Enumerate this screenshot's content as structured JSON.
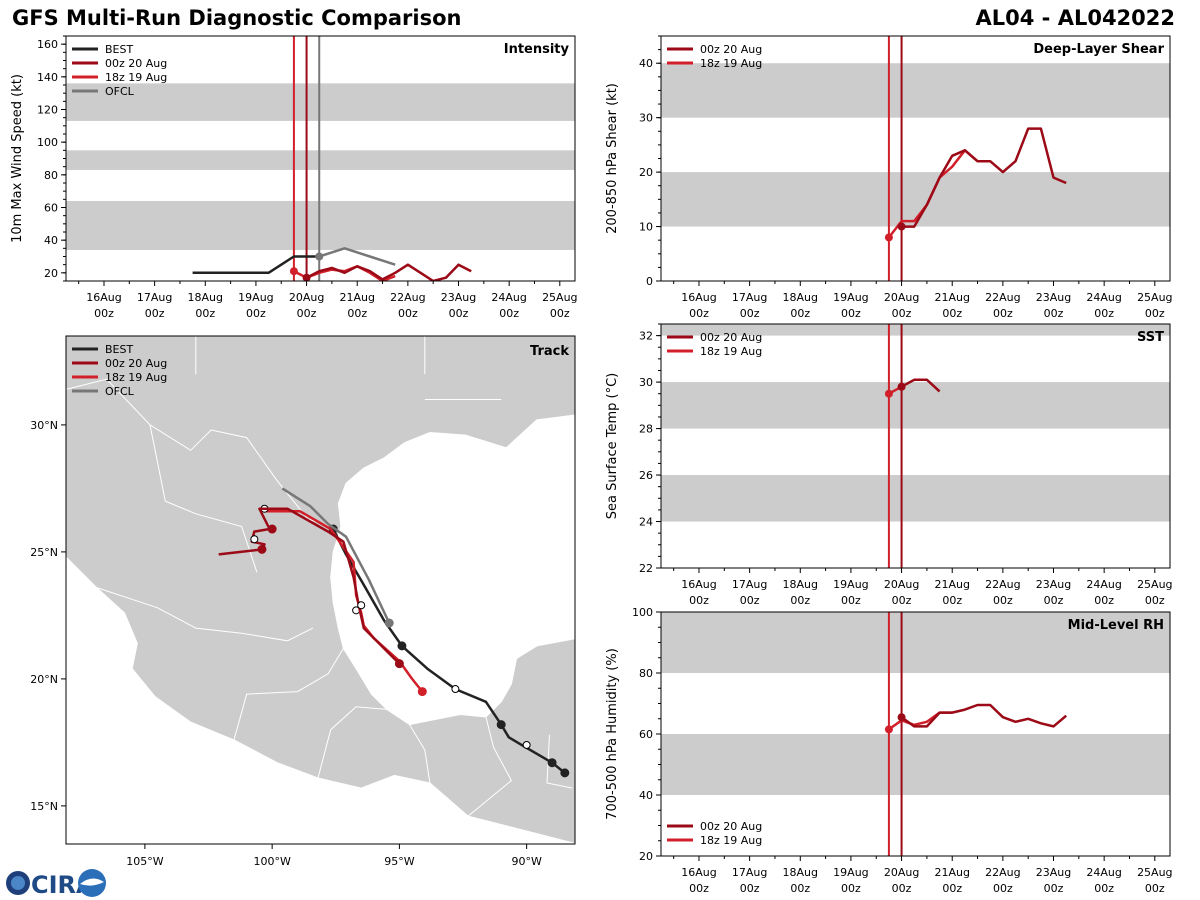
{
  "header": {
    "title_left": "GFS Multi-Run Diagnostic Comparison",
    "title_right": "AL04 - AL042022"
  },
  "logo": {
    "text": "CIRA"
  },
  "colors": {
    "best": "#222222",
    "run_00z": "#9b0a16",
    "run_18z": "#d2202a",
    "ofcl": "#777777",
    "band": "#cccccc",
    "land": "#cccccc"
  },
  "time_axis": {
    "ticks": [
      {
        "day": 16,
        "top": "16Aug",
        "bottom": "00z"
      },
      {
        "day": 17,
        "top": "17Aug",
        "bottom": "00z"
      },
      {
        "day": 18,
        "top": "18Aug",
        "bottom": "00z"
      },
      {
        "day": 19,
        "top": "19Aug",
        "bottom": "00z"
      },
      {
        "day": 20,
        "top": "20Aug",
        "bottom": "00z"
      },
      {
        "day": 21,
        "top": "21Aug",
        "bottom": "00z"
      },
      {
        "day": 22,
        "top": "22Aug",
        "bottom": "00z"
      },
      {
        "day": 23,
        "top": "23Aug",
        "bottom": "00z"
      },
      {
        "day": 24,
        "top": "24Aug",
        "bottom": "00z"
      },
      {
        "day": 25,
        "top": "25Aug",
        "bottom": "00z"
      }
    ]
  },
  "chart_data": [
    {
      "id": "intensity",
      "type": "line",
      "title": "Intensity",
      "ylabel": "10m Max Wind Speed (kt)",
      "xlim": [
        15.25,
        25.3
      ],
      "ylim": [
        15,
        165
      ],
      "yticks": [
        20,
        40,
        60,
        80,
        100,
        120,
        140,
        160
      ],
      "bands": [
        [
          34,
          64
        ],
        [
          83,
          95
        ],
        [
          113,
          136
        ]
      ],
      "vlines": [
        {
          "x": 19.75,
          "series": "18z 19 Aug"
        },
        {
          "x": 20.0,
          "series": "00z 20 Aug"
        },
        {
          "x": 20.25,
          "series": "OFCL"
        }
      ],
      "legend": {
        "position": "top-left",
        "entries": [
          "BEST",
          "00z 20 Aug",
          "18z 19 Aug",
          "OFCL"
        ]
      },
      "series": [
        {
          "name": "BEST",
          "color_key": "best",
          "points": [
            [
              17.75,
              20
            ],
            [
              18.0,
              20
            ],
            [
              18.25,
              20
            ],
            [
              18.5,
              20
            ],
            [
              18.75,
              20
            ],
            [
              19.0,
              20
            ],
            [
              19.25,
              20
            ],
            [
              19.5,
              25
            ],
            [
              19.75,
              30
            ],
            [
              20.0,
              30
            ],
            [
              20.25,
              30
            ]
          ]
        },
        {
          "name": "OFCL",
          "color_key": "ofcl",
          "marker_start": true,
          "points": [
            [
              20.25,
              30
            ],
            [
              20.75,
              35
            ],
            [
              21.25,
              30
            ],
            [
              21.75,
              25
            ]
          ]
        },
        {
          "name": "18z 19 Aug",
          "color_key": "run_18z",
          "marker_start": true,
          "points": [
            [
              19.75,
              21
            ],
            [
              20.0,
              17
            ],
            [
              20.25,
              20
            ],
            [
              20.5,
              22
            ],
            [
              20.75,
              21
            ],
            [
              21.0,
              24
            ],
            [
              21.25,
              20
            ],
            [
              21.5,
              15
            ],
            [
              21.75,
              18
            ]
          ]
        },
        {
          "name": "00z 20 Aug",
          "color_key": "run_00z",
          "marker_start": true,
          "points": [
            [
              20.0,
              17
            ],
            [
              20.25,
              21
            ],
            [
              20.5,
              23
            ],
            [
              20.75,
              20
            ],
            [
              21.0,
              24
            ],
            [
              21.25,
              21
            ],
            [
              21.5,
              16
            ],
            [
              21.75,
              20
            ],
            [
              22.0,
              25
            ],
            [
              22.25,
              20
            ],
            [
              22.5,
              15
            ],
            [
              22.75,
              17
            ],
            [
              23.0,
              25
            ],
            [
              23.25,
              21
            ]
          ]
        }
      ]
    },
    {
      "id": "shear",
      "type": "line",
      "title": "Deep-Layer Shear",
      "ylabel": "200-850 hPa Shear (kt)",
      "xlim": [
        15.25,
        25.3
      ],
      "ylim": [
        0,
        45
      ],
      "yticks": [
        0,
        10,
        20,
        30,
        40
      ],
      "bands": [
        [
          10,
          20
        ],
        [
          30,
          40
        ]
      ],
      "vlines": [
        {
          "x": 19.75,
          "series": "18z 19 Aug"
        },
        {
          "x": 20.0,
          "series": "00z 20 Aug"
        }
      ],
      "legend": {
        "position": "top-left",
        "entries": [
          "00z 20 Aug",
          "18z 19 Aug"
        ]
      },
      "series": [
        {
          "name": "18z 19 Aug",
          "color_key": "run_18z",
          "marker_start": true,
          "points": [
            [
              19.75,
              8
            ],
            [
              20.0,
              11
            ],
            [
              20.25,
              11
            ],
            [
              20.5,
              14
            ],
            [
              20.75,
              19
            ],
            [
              21.0,
              21
            ],
            [
              21.25,
              24
            ],
            [
              21.5,
              22
            ]
          ]
        },
        {
          "name": "00z 20 Aug",
          "color_key": "run_00z",
          "marker_start": true,
          "points": [
            [
              20.0,
              10
            ],
            [
              20.25,
              10
            ],
            [
              20.5,
              14
            ],
            [
              20.75,
              19
            ],
            [
              21.0,
              23
            ],
            [
              21.25,
              24
            ],
            [
              21.5,
              22
            ],
            [
              21.75,
              22
            ],
            [
              22.0,
              20
            ],
            [
              22.25,
              22
            ],
            [
              22.5,
              28
            ],
            [
              22.75,
              28
            ],
            [
              23.0,
              19
            ],
            [
              23.25,
              18
            ]
          ]
        }
      ]
    },
    {
      "id": "sst",
      "type": "line",
      "title": "SST",
      "ylabel": "Sea Surface Temp (°C)",
      "xlim": [
        15.25,
        25.3
      ],
      "ylim": [
        22,
        32.5
      ],
      "yticks": [
        22,
        24,
        26,
        28,
        30,
        32
      ],
      "bands": [
        [
          24,
          26
        ],
        [
          28,
          30
        ],
        [
          32,
          34
        ]
      ],
      "vlines": [
        {
          "x": 19.75,
          "series": "18z 19 Aug"
        },
        {
          "x": 20.0,
          "series": "00z 20 Aug"
        }
      ],
      "legend": {
        "position": "top-left",
        "entries": [
          "00z 20 Aug",
          "18z 19 Aug"
        ]
      },
      "series": [
        {
          "name": "18z 19 Aug",
          "color_key": "run_18z",
          "marker_start": true,
          "points": [
            [
              19.75,
              29.5
            ],
            [
              20.0,
              29.8
            ]
          ]
        },
        {
          "name": "00z 20 Aug",
          "color_key": "run_00z",
          "marker_start": true,
          "points": [
            [
              20.0,
              29.8
            ],
            [
              20.25,
              30.1
            ],
            [
              20.5,
              30.1
            ],
            [
              20.75,
              29.6
            ]
          ]
        }
      ]
    },
    {
      "id": "rh",
      "type": "line",
      "title": "Mid-Level RH",
      "ylabel": "700-500 hPa Humidity (%)",
      "xlim": [
        15.25,
        25.3
      ],
      "ylim": [
        20,
        100
      ],
      "yticks": [
        20,
        40,
        60,
        80,
        100
      ],
      "bands": [
        [
          40,
          60
        ],
        [
          80,
          100
        ]
      ],
      "vlines": [
        {
          "x": 19.75,
          "series": "18z 19 Aug"
        },
        {
          "x": 20.0,
          "series": "00z 20 Aug"
        }
      ],
      "legend": {
        "position": "bottom-left",
        "entries": [
          "00z 20 Aug",
          "18z 19 Aug"
        ]
      },
      "series": [
        {
          "name": "18z 19 Aug",
          "color_key": "run_18z",
          "marker_start": true,
          "points": [
            [
              19.75,
              61.5
            ],
            [
              20.0,
              64.5
            ],
            [
              20.25,
              63
            ],
            [
              20.5,
              64
            ],
            [
              20.75,
              67
            ],
            [
              21.0,
              67
            ]
          ]
        },
        {
          "name": "00z 20 Aug",
          "color_key": "run_00z",
          "marker_start": true,
          "points": [
            [
              20.0,
              65.5
            ],
            [
              20.25,
              62.5
            ],
            [
              20.5,
              62.5
            ],
            [
              20.75,
              67
            ],
            [
              21.0,
              67
            ],
            [
              21.25,
              68
            ],
            [
              21.5,
              69.5
            ],
            [
              21.75,
              69.5
            ],
            [
              22.0,
              65.5
            ],
            [
              22.25,
              64
            ],
            [
              22.5,
              65
            ],
            [
              22.75,
              63.5
            ],
            [
              23.0,
              62.5
            ],
            [
              23.25,
              66
            ]
          ]
        }
      ]
    },
    {
      "id": "track",
      "type": "scatter",
      "title": "Track",
      "xlim": [
        -108.1,
        -88.1
      ],
      "ylim": [
        13.5,
        33.5
      ],
      "xticks": [
        {
          "lon": -105,
          "label": "105°W"
        },
        {
          "lon": -100,
          "label": "100°W"
        },
        {
          "lon": -95,
          "label": "95°W"
        },
        {
          "lon": -90,
          "label": "90°W"
        }
      ],
      "yticks": [
        {
          "lat": 15,
          "label": "15°N"
        },
        {
          "lat": 20,
          "label": "20°N"
        },
        {
          "lat": 25,
          "label": "25°N"
        },
        {
          "lat": 30,
          "label": "30°N"
        }
      ],
      "legend": {
        "position": "top-left",
        "entries": [
          "BEST",
          "00z 20 Aug",
          "18z 19 Aug",
          "OFCL"
        ]
      },
      "series": [
        {
          "name": "BEST",
          "color_key": "best",
          "points": [
            [
              -88.5,
              16.3
            ],
            [
              -89.0,
              16.7
            ],
            [
              -90.2,
              17.4
            ],
            [
              -90.7,
              17.7
            ],
            [
              -91.0,
              18.2
            ],
            [
              -91.6,
              19.1
            ],
            [
              -92.8,
              19.6
            ],
            [
              -93.9,
              20.4
            ],
            [
              -94.9,
              21.3
            ],
            [
              -95.6,
              22.3
            ],
            [
              -96.4,
              23.7
            ],
            [
              -97.1,
              24.9
            ],
            [
              -97.6,
              25.9
            ]
          ],
          "markers": [
            [
              -88.5,
              16.3,
              "filled"
            ],
            [
              -89.0,
              16.7,
              "filled"
            ],
            [
              -90.0,
              17.4,
              "open"
            ],
            [
              -91.0,
              18.2,
              "filled"
            ],
            [
              -92.8,
              19.6,
              "open"
            ],
            [
              -94.9,
              21.3,
              "filled"
            ],
            [
              -97.6,
              25.9,
              "filled"
            ]
          ]
        },
        {
          "name": "OFCL",
          "color_key": "ofcl",
          "points": [
            [
              -95.4,
              22.2
            ],
            [
              -96.2,
              23.9
            ],
            [
              -97.1,
              25.6
            ],
            [
              -97.8,
              26.1
            ],
            [
              -98.5,
              26.8
            ],
            [
              -99.6,
              27.5
            ]
          ],
          "markers": [
            [
              -95.4,
              22.2,
              "filled"
            ]
          ]
        },
        {
          "name": "18z 19 Aug",
          "color_key": "run_18z",
          "points": [
            [
              -94.1,
              19.5
            ],
            [
              -94.5,
              20.0
            ],
            [
              -95.0,
              20.7
            ],
            [
              -96.0,
              21.6
            ],
            [
              -96.4,
              22.1
            ],
            [
              -96.5,
              22.6
            ],
            [
              -96.7,
              23.3
            ],
            [
              -96.8,
              24.6
            ],
            [
              -97.7,
              25.9
            ],
            [
              -98.9,
              26.6
            ],
            [
              -100.3,
              26.6
            ]
          ],
          "markers": [
            [
              -94.1,
              19.5,
              "filled"
            ],
            [
              -96.7,
              22.7,
              "open"
            ],
            [
              -100.3,
              26.7,
              "open"
            ]
          ]
        },
        {
          "name": "00z 20 Aug",
          "color_key": "run_00z",
          "points": [
            [
              -95.0,
              20.6
            ],
            [
              -95.8,
              21.4
            ],
            [
              -96.4,
              22.0
            ],
            [
              -96.6,
              22.9
            ],
            [
              -96.8,
              24.0
            ],
            [
              -97.2,
              25.4
            ],
            [
              -97.8,
              25.8
            ],
            [
              -99.4,
              26.7
            ],
            [
              -100.5,
              26.7
            ],
            [
              -100.1,
              25.9
            ],
            [
              -100.7,
              25.8
            ],
            [
              -100.8,
              25.4
            ],
            [
              -100.3,
              25.3
            ],
            [
              -100.4,
              25.1
            ],
            [
              -102.1,
              24.9
            ]
          ],
          "markers": [
            [
              -95.0,
              20.6,
              "filled"
            ],
            [
              -96.5,
              22.9,
              "open"
            ],
            [
              -100.0,
              25.9,
              "filled"
            ],
            [
              -100.7,
              25.5,
              "open"
            ],
            [
              -100.4,
              25.1,
              "filled"
            ]
          ]
        }
      ]
    }
  ]
}
